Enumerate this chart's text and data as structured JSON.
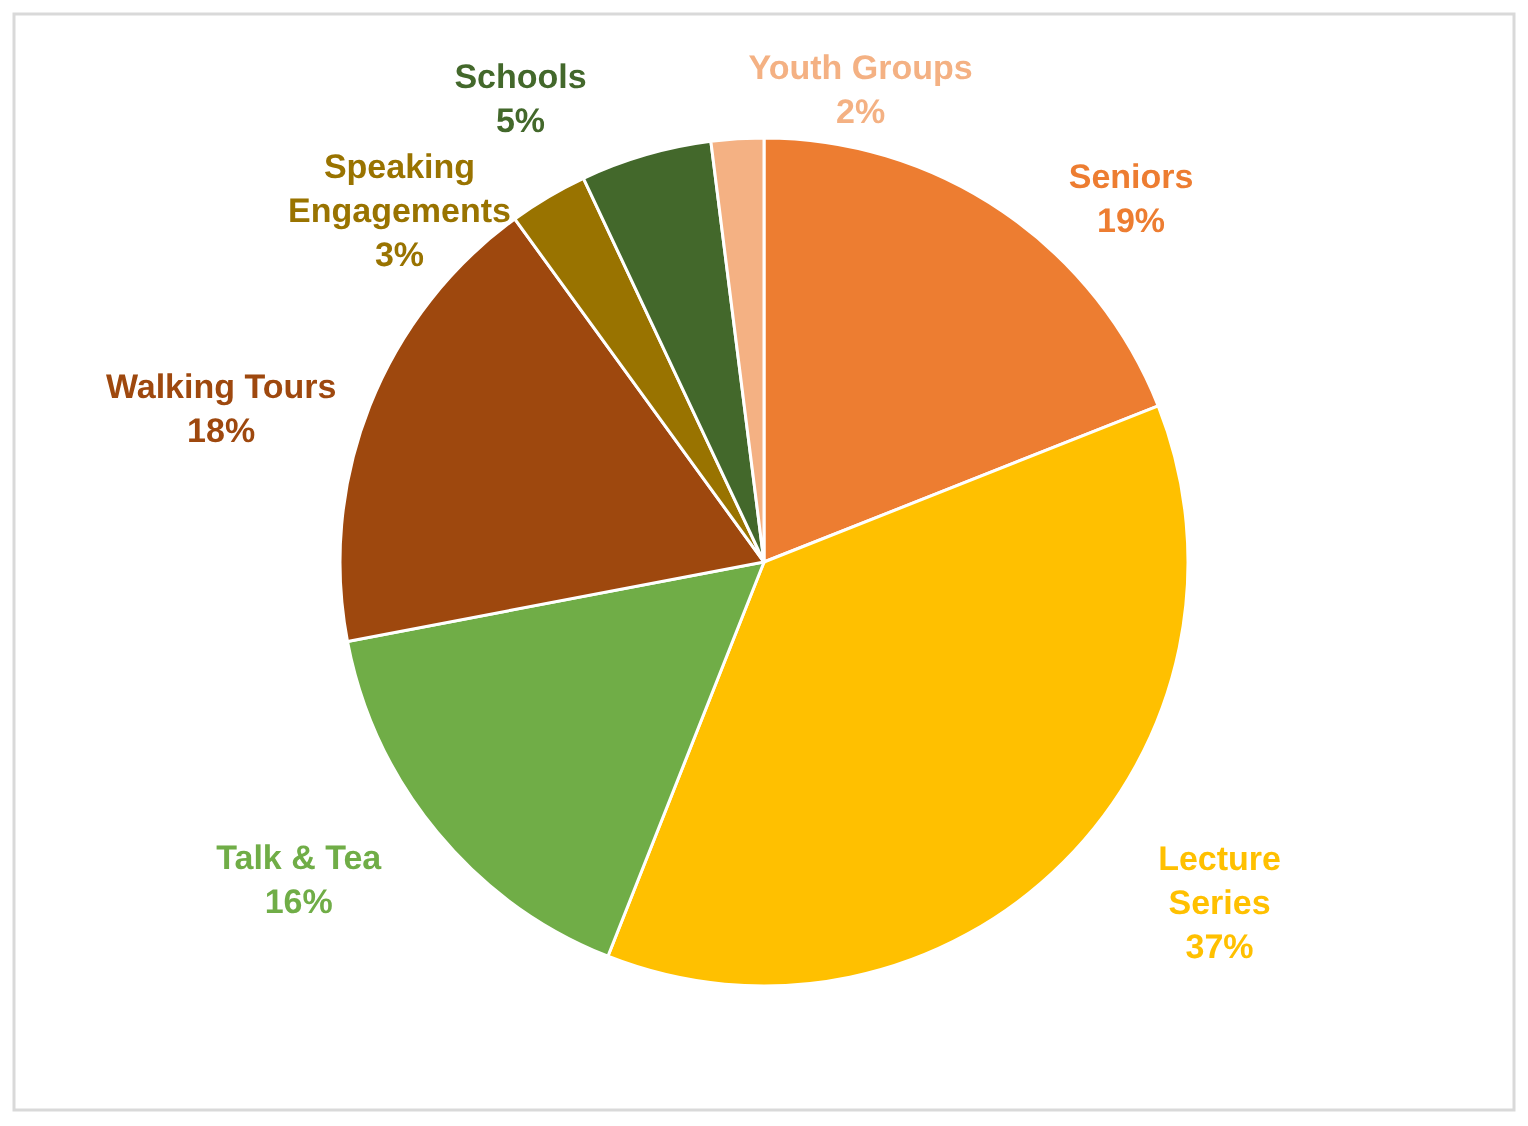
{
  "chart_data": {
    "type": "pie",
    "categories": [
      "Seniors",
      "Lecture Series",
      "Talk & Tea",
      "Walking Tours",
      "Speaking Engagements",
      "Schools",
      "Youth Groups"
    ],
    "values": [
      19,
      37,
      16,
      18,
      3,
      5,
      2
    ],
    "colors": [
      "#ed7d31",
      "#ffc000",
      "#70ad47",
      "#9e480e",
      "#997300",
      "#43682b",
      "#f4b183"
    ],
    "value_labels": [
      "19%",
      "37%",
      "16%",
      "18%",
      "3%",
      "5%",
      "2%"
    ]
  }
}
